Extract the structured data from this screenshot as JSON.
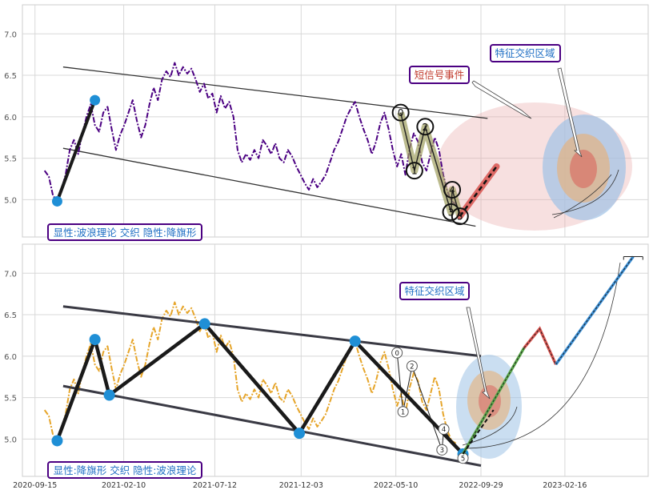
{
  "colors": {
    "panel_bg": "#ffffff",
    "panel_border": "#cccccc",
    "grid": "#d8d8d8",
    "tick_text": "#555555",
    "price_top": "#4b0082",
    "price_bottom": "#e6a52a",
    "channel": "#333333",
    "wave_line": "#1a1a1a",
    "wave_node": "#1f8fd6",
    "ellipse_red": "#e8a6a6",
    "ellipse_blue": "#9fc2e6",
    "ellipse_orange": "#e6b07a",
    "label_blue": "#1f6fc4",
    "label_red": "#c0392b",
    "label_border": "#4b0082",
    "olive": "#a0a060",
    "segment_red": "#d9534f",
    "segment_blue": "#3a8fd6",
    "segment_green": "#5aa84a"
  },
  "chart_data": [
    {
      "type": "line",
      "name": "top-panel",
      "ylim": [
        4.55,
        7.35
      ],
      "yticks": [
        "5.0",
        "5.5",
        "6.0",
        "6.5",
        "7.0"
      ],
      "ytick_values": [
        5.0,
        5.5,
        6.0,
        6.5,
        7.0
      ],
      "series_color": "price_top",
      "price": [
        [
          "2020-10-01",
          5.35
        ],
        [
          "2020-10-08",
          5.28
        ],
        [
          "2020-10-15",
          5.05
        ],
        [
          "2020-10-22",
          4.98
        ],
        [
          "2020-10-29",
          5.12
        ],
        [
          "2020-11-05",
          5.3
        ],
        [
          "2020-11-12",
          5.6
        ],
        [
          "2020-11-19",
          5.72
        ],
        [
          "2020-11-26",
          5.55
        ],
        [
          "2020-12-03",
          5.8
        ],
        [
          "2020-12-10",
          6.0
        ],
        [
          "2020-12-17",
          6.15
        ],
        [
          "2020-12-24",
          5.9
        ],
        [
          "2020-12-31",
          5.82
        ],
        [
          "2021-01-07",
          6.05
        ],
        [
          "2021-01-14",
          6.12
        ],
        [
          "2021-01-21",
          5.85
        ],
        [
          "2021-01-28",
          5.6
        ],
        [
          "2021-02-04",
          5.78
        ],
        [
          "2021-02-11",
          5.9
        ],
        [
          "2021-02-18",
          6.05
        ],
        [
          "2021-02-25",
          6.2
        ],
        [
          "2021-03-04",
          5.95
        ],
        [
          "2021-03-11",
          5.75
        ],
        [
          "2021-03-18",
          5.9
        ],
        [
          "2021-03-25",
          6.15
        ],
        [
          "2021-04-01",
          6.35
        ],
        [
          "2021-04-08",
          6.2
        ],
        [
          "2021-04-15",
          6.45
        ],
        [
          "2021-04-22",
          6.55
        ],
        [
          "2021-04-29",
          6.48
        ],
        [
          "2021-05-06",
          6.65
        ],
        [
          "2021-05-13",
          6.5
        ],
        [
          "2021-05-20",
          6.6
        ],
        [
          "2021-05-27",
          6.52
        ],
        [
          "2021-06-03",
          6.58
        ],
        [
          "2021-06-10",
          6.45
        ],
        [
          "2021-06-17",
          6.3
        ],
        [
          "2021-06-24",
          6.4
        ],
        [
          "2021-07-01",
          6.22
        ],
        [
          "2021-07-08",
          6.28
        ],
        [
          "2021-07-15",
          6.05
        ],
        [
          "2021-07-22",
          6.25
        ],
        [
          "2021-07-29",
          6.1
        ],
        [
          "2021-08-05",
          6.18
        ],
        [
          "2021-08-12",
          6.0
        ],
        [
          "2021-08-19",
          5.6
        ],
        [
          "2021-08-26",
          5.45
        ],
        [
          "2021-09-02",
          5.55
        ],
        [
          "2021-09-09",
          5.48
        ],
        [
          "2021-09-16",
          5.6
        ],
        [
          "2021-09-23",
          5.5
        ],
        [
          "2021-09-30",
          5.72
        ],
        [
          "2021-10-07",
          5.65
        ],
        [
          "2021-10-14",
          5.55
        ],
        [
          "2021-10-21",
          5.68
        ],
        [
          "2021-10-28",
          5.5
        ],
        [
          "2021-11-04",
          5.45
        ],
        [
          "2021-11-11",
          5.6
        ],
        [
          "2021-11-18",
          5.52
        ],
        [
          "2021-11-25",
          5.4
        ],
        [
          "2021-12-02",
          5.3
        ],
        [
          "2021-12-09",
          5.2
        ],
        [
          "2021-12-16",
          5.12
        ],
        [
          "2021-12-23",
          5.25
        ],
        [
          "2021-12-30",
          5.15
        ],
        [
          "2022-01-06",
          5.22
        ],
        [
          "2022-01-13",
          5.3
        ],
        [
          "2022-01-20",
          5.45
        ],
        [
          "2022-01-27",
          5.6
        ],
        [
          "2022-02-03",
          5.7
        ],
        [
          "2022-02-10",
          5.85
        ],
        [
          "2022-02-17",
          6.0
        ],
        [
          "2022-02-24",
          6.1
        ],
        [
          "2022-03-03",
          6.18
        ],
        [
          "2022-03-10",
          6.0
        ],
        [
          "2022-03-17",
          5.85
        ],
        [
          "2022-03-24",
          5.72
        ],
        [
          "2022-03-31",
          5.55
        ],
        [
          "2022-04-07",
          5.7
        ],
        [
          "2022-04-14",
          5.92
        ],
        [
          "2022-04-21",
          6.05
        ],
        [
          "2022-04-28",
          5.85
        ],
        [
          "2022-05-05",
          5.6
        ],
        [
          "2022-05-12",
          5.4
        ],
        [
          "2022-05-19",
          5.55
        ],
        [
          "2022-05-26",
          5.3
        ],
        [
          "2022-06-02",
          5.62
        ],
        [
          "2022-06-09",
          5.8
        ],
        [
          "2022-06-16",
          5.7
        ],
        [
          "2022-06-23",
          5.45
        ],
        [
          "2022-06-30",
          5.35
        ],
        [
          "2022-07-07",
          5.55
        ],
        [
          "2022-07-14",
          5.75
        ],
        [
          "2022-07-21",
          5.6
        ],
        [
          "2022-07-28",
          5.3
        ],
        [
          "2022-08-04",
          5.1
        ],
        [
          "2022-08-11",
          4.98
        ],
        [
          "2022-08-18",
          4.95
        ]
      ],
      "channel": [
        [
          [
            "2020-11-01",
            6.6
          ],
          [
            "2022-10-10",
            5.98
          ]
        ],
        [
          [
            "2020-11-01",
            5.62
          ],
          [
            "2022-09-20",
            4.68
          ]
        ]
      ],
      "wave_left": [
        [
          "2020-10-22",
          4.98
        ],
        [
          "2020-12-24",
          6.2
        ]
      ],
      "wave_markers": [
        {
          "label": "0",
          "x": "2022-05-18",
          "y": 6.05
        },
        {
          "label": "1",
          "x": "2022-06-10",
          "y": 5.35
        },
        {
          "label": "2",
          "x": "2022-06-28",
          "y": 5.88
        },
        {
          "label": "3",
          "x": "2022-08-10",
          "y": 4.85
        },
        {
          "label": "4",
          "x": "2022-08-12",
          "y": 5.12
        },
        {
          "label": "5",
          "x": "2022-08-25",
          "y": 4.8
        }
      ],
      "wave_path": [
        [
          "2022-05-18",
          6.05
        ],
        [
          "2022-06-10",
          5.35
        ],
        [
          "2022-06-28",
          5.88
        ],
        [
          "2022-08-10",
          4.85
        ],
        [
          "2022-08-12",
          5.12
        ],
        [
          "2022-08-25",
          4.8
        ]
      ],
      "red_segment": [
        [
          "2022-08-25",
          4.8
        ],
        [
          "2022-10-25",
          5.4
        ]
      ],
      "red_dash": [
        [
          "2022-08-25",
          4.8
        ],
        [
          "2022-10-25",
          5.4
        ]
      ],
      "annotations": [
        {
          "text": "特征交织区域",
          "color": "label_blue"
        },
        {
          "text": "短信号事件",
          "color": "label_red"
        },
        {
          "text": "显性:波浪理论 交织 隐性:降旗形",
          "color": "label_blue"
        }
      ]
    },
    {
      "type": "line",
      "name": "bottom-panel",
      "ylim": [
        4.55,
        7.35
      ],
      "yticks": [
        "5.0",
        "5.5",
        "6.0",
        "6.5",
        "7.0"
      ],
      "ytick_values": [
        5.0,
        5.5,
        6.0,
        6.5,
        7.0
      ],
      "xticks": [
        "2020-09-15",
        "2021-02-10",
        "2021-07-12",
        "2021-12-03",
        "2022-05-10",
        "2022-09-29",
        "2023-02-16"
      ],
      "series_color": "price_bottom",
      "wave_nodes": [
        [
          "2020-10-22",
          4.98
        ],
        [
          "2020-12-24",
          6.2
        ],
        [
          "2021-01-17",
          5.53
        ],
        [
          "2021-06-25",
          6.39
        ],
        [
          "2021-11-30",
          5.07
        ],
        [
          "2022-03-03",
          6.18
        ],
        [
          "2022-08-30",
          4.82
        ]
      ],
      "channel": [
        [
          [
            "2020-11-01",
            6.6
          ],
          [
            "2022-09-29",
            6.0
          ]
        ],
        [
          [
            "2020-11-01",
            5.64
          ],
          [
            "2022-09-29",
            4.68
          ]
        ]
      ],
      "small_markers": [
        {
          "label": "0",
          "x": "2022-05-12",
          "y": 6.04
        },
        {
          "label": "1",
          "x": "2022-05-22",
          "y": 5.33
        },
        {
          "label": "2",
          "x": "2022-06-06",
          "y": 5.88
        },
        {
          "label": "3",
          "x": "2022-07-26",
          "y": 4.87
        },
        {
          "label": "4",
          "x": "2022-07-29",
          "y": 5.12
        },
        {
          "label": "5",
          "x": "2022-08-30",
          "y": 4.77
        }
      ],
      "projection": {
        "green": [
          [
            "2022-08-30",
            4.82
          ],
          [
            "2022-12-10",
            6.1
          ]
        ],
        "red": [
          [
            "2022-12-10",
            6.1
          ],
          [
            "2023-01-05",
            6.33
          ],
          [
            "2023-02-01",
            5.9
          ]
        ],
        "blue": [
          [
            "2023-02-01",
            5.9
          ],
          [
            "2023-06-10",
            7.2
          ]
        ]
      },
      "annotations": [
        {
          "text": "特征交织区域",
          "color": "label_blue"
        },
        {
          "text": "显性:降旗形 交织 隐性:波浪理论",
          "color": "label_blue"
        }
      ]
    }
  ]
}
